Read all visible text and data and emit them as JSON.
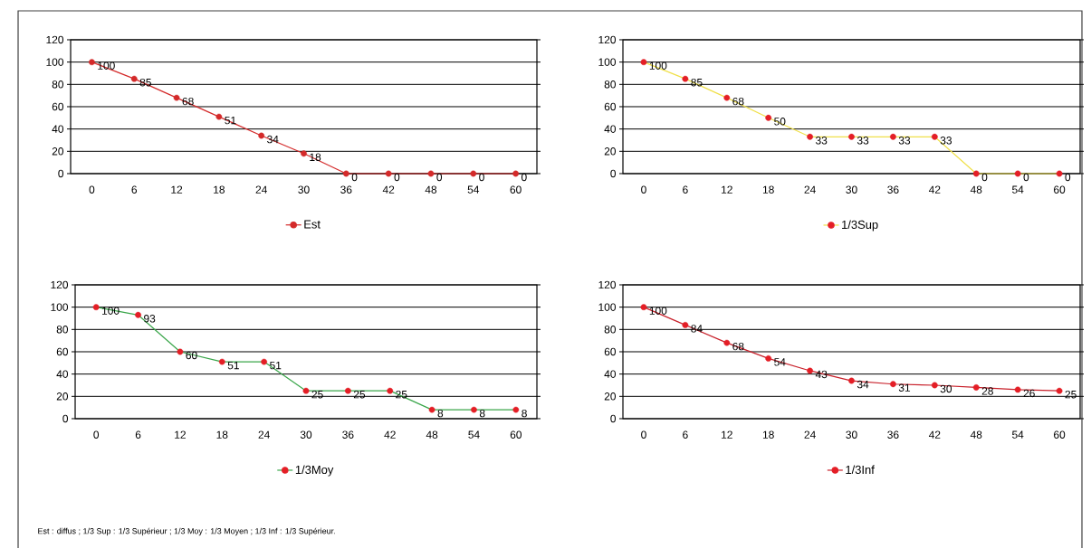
{
  "chart_data": [
    {
      "type": "line",
      "categories": [
        "0",
        "6",
        "12",
        "18",
        "24",
        "30",
        "36",
        "42",
        "48",
        "54",
        "60"
      ],
      "ylim": [
        0,
        120
      ],
      "yticks": [
        0,
        20,
        40,
        60,
        80,
        100,
        120
      ],
      "grid": "y",
      "legend": "bottom",
      "marker": "circle",
      "data_labels": true,
      "series": [
        {
          "name": "Est",
          "color": "#d42a2a",
          "colors": [
            "#d42a2a",
            "#d42a2a",
            "#d42a2a",
            "#d42a2a",
            "#d42a2a",
            "#d42a2a",
            "#d42a2a",
            "#d42a2a",
            "#d42a2a",
            "#d42a2a",
            "#d42a2a"
          ],
          "values": [
            100,
            85,
            68,
            51,
            34,
            18,
            0,
            0,
            0,
            0,
            0
          ]
        }
      ]
    },
    {
      "type": "line",
      "categories": [
        "0",
        "6",
        "12",
        "18",
        "24",
        "30",
        "36",
        "42",
        "48",
        "54",
        "60"
      ],
      "ylim": [
        0,
        120
      ],
      "yticks": [
        0,
        20,
        40,
        60,
        80,
        100,
        120
      ],
      "grid": "y",
      "legend": "bottom",
      "marker": "circle",
      "data_labels": true,
      "series": [
        {
          "name": "1/3Sup",
          "color": "#f0e04a",
          "colors": [
            "#e41e26",
            "#e41e26",
            "#e41e26",
            "#e41e26",
            "#e41e26",
            "#e41e26",
            "#e41e26",
            "#e41e26",
            "#e41e26",
            "#e41e26",
            "#e41e26"
          ],
          "values": [
            100,
            85,
            68,
            50,
            33,
            33,
            33,
            33,
            0,
            0,
            0
          ]
        }
      ]
    },
    {
      "type": "line",
      "categories": [
        "0",
        "6",
        "12",
        "18",
        "24",
        "30",
        "36",
        "42",
        "48",
        "54",
        "60"
      ],
      "ylim": [
        0,
        120
      ],
      "yticks": [
        0,
        20,
        40,
        60,
        80,
        100,
        120
      ],
      "grid": "y",
      "legend": "bottom",
      "marker": "circle",
      "data_labels": true,
      "series": [
        {
          "name": "1/3Moy",
          "color": "#3aa64a",
          "colors": [
            "#e41e26",
            "#e41e26",
            "#e41e26",
            "#e41e26",
            "#e41e26",
            "#e41e26",
            "#e41e26",
            "#e41e26",
            "#e41e26",
            "#e41e26",
            "#e41e26"
          ],
          "values": [
            100,
            93,
            60,
            51,
            51,
            25,
            25,
            25,
            8,
            8,
            8
          ]
        }
      ]
    },
    {
      "type": "line",
      "categories": [
        "0",
        "6",
        "12",
        "18",
        "24",
        "30",
        "36",
        "42",
        "48",
        "54",
        "60"
      ],
      "ylim": [
        0,
        120
      ],
      "yticks": [
        0,
        20,
        40,
        60,
        80,
        100,
        120
      ],
      "grid": "y",
      "legend": "bottom",
      "marker": "circle",
      "data_labels": true,
      "series": [
        {
          "name": "1/3Inf",
          "color": "#c8202a",
          "colors": [
            "#e41e26",
            "#e41e26",
            "#e41e26",
            "#e41e26",
            "#e41e26",
            "#e41e26",
            "#e41e26",
            "#e41e26",
            "#e41e26",
            "#e41e26",
            "#e41e26"
          ],
          "values": [
            100,
            84,
            68,
            54,
            43,
            34,
            31,
            30,
            28,
            26,
            25
          ]
        }
      ],
      "annotations": [
        "Est : diffus ; 1/3 Sup : 1/3 Supérieur ; 1/3 Moy : 1/3 Moyen ; 1/3 Inf : 1/3 Supérieur."
      ]
    }
  ]
}
